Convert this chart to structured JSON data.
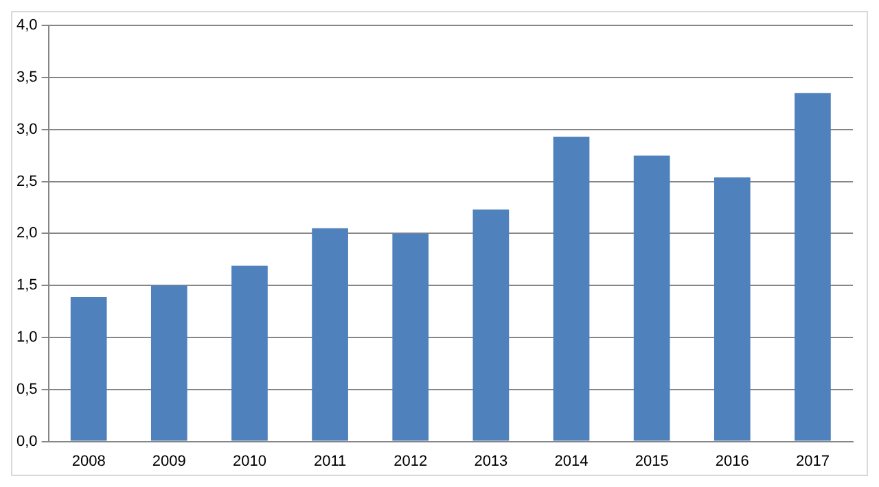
{
  "chart_data": {
    "type": "bar",
    "categories": [
      "2008",
      "2009",
      "2010",
      "2011",
      "2012",
      "2013",
      "2014",
      "2015",
      "2016",
      "2017"
    ],
    "values": [
      1.39,
      1.5,
      1.69,
      2.05,
      2.0,
      2.23,
      2.93,
      2.75,
      2.54,
      3.35
    ],
    "color": "#4f81bd",
    "ylim": [
      0,
      4
    ],
    "yticks": [
      {
        "value": 0,
        "label": "0,0"
      },
      {
        "value": 0.5,
        "label": "0,5"
      },
      {
        "value": 1,
        "label": "1,0"
      },
      {
        "value": 1.5,
        "label": "1,5"
      },
      {
        "value": 2,
        "label": "2,0"
      },
      {
        "value": 2.5,
        "label": "2,5"
      },
      {
        "value": 3,
        "label": "3,0"
      },
      {
        "value": 3.5,
        "label": "3,5"
      },
      {
        "value": 4,
        "label": "4,0"
      }
    ],
    "grid": "y",
    "legend": false
  }
}
